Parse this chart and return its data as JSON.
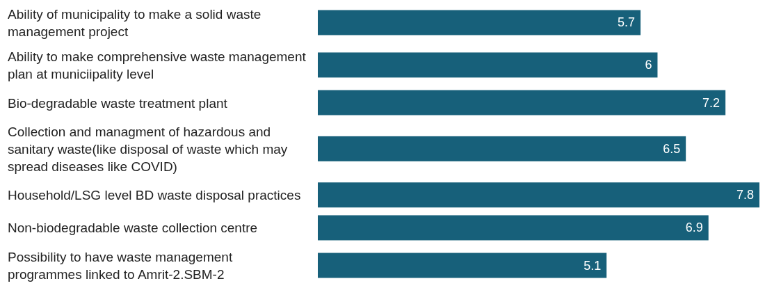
{
  "chart_data": {
    "type": "bar",
    "orientation": "horizontal",
    "data_labels": true,
    "color": "#17607a",
    "categories": [
      "Ability of municipality to make a solid waste management project",
      "Ability to make comprehensive waste management plan at municiipality level",
      "Bio-degradable waste treatment plant",
      "Collection and managment of hazardous and sanitary waste(like disposal of waste which may spread diseases like COVID)",
      "Household/LSG level BD waste disposal practices",
      "Non-biodegradable waste collection centre",
      "Possibility to have waste management programmes linked to Amrit-2.SBM-2"
    ],
    "values": [
      5.7,
      6,
      7.2,
      6.5,
      7.8,
      6.9,
      5.1
    ]
  }
}
